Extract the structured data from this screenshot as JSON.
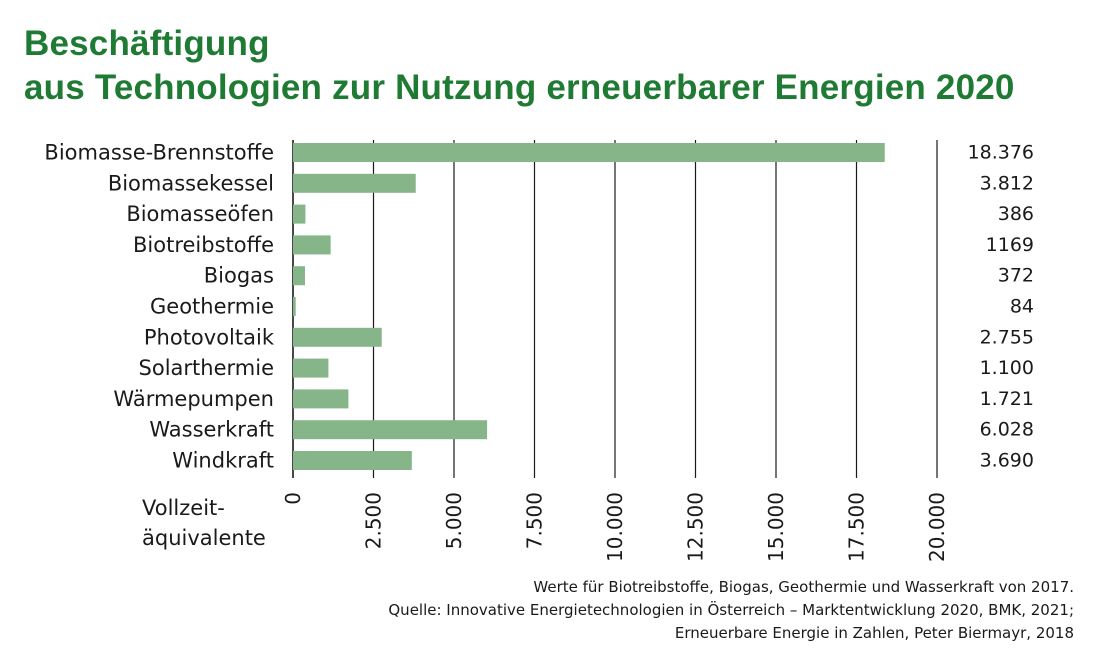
{
  "title_lines": [
    "Beschäftigung",
    "aus Technologien zur Nutzung erneuerbarer Energien 2020"
  ],
  "colors": {
    "title": "#1f7a33",
    "bar": "#86b58a",
    "axis": "#1a1a1a"
  },
  "chart_data": {
    "type": "bar",
    "orientation": "horizontal",
    "categories": [
      "Biomasse-Brennstoffe",
      "Biomassekessel",
      "Biomasseöfen",
      "Biotreibstoffe",
      "Biogas",
      "Geothermie",
      "Photovoltaik",
      "Solarthermie",
      "Wärmepumpen",
      "Wasserkraft",
      "Windkraft"
    ],
    "values": [
      18376,
      3812,
      386,
      1169,
      372,
      84,
      2755,
      1100,
      1721,
      6028,
      3690
    ],
    "value_labels": [
      "18.376",
      "3.812",
      "386",
      "1169",
      "372",
      "84",
      "2.755",
      "1.100",
      "1.721",
      "6.028",
      "3.690"
    ],
    "xlim": [
      0,
      20000
    ],
    "xticks": [
      0,
      2500,
      5000,
      7500,
      10000,
      12500,
      15000,
      17500,
      20000
    ],
    "xtick_labels": [
      "0",
      "2.500",
      "5.000",
      "7.500",
      "10.000",
      "12.500",
      "15.000",
      "17.500",
      "20.000"
    ],
    "xlabel_lines": [
      "Vollzeit-",
      "äquivalente"
    ],
    "grid": true,
    "legend": "none"
  },
  "footnotes": [
    "Werte für Biotreibstoffe, Biogas, Geothermie und Wasserkraft von 2017.",
    "Quelle: Innovative Energietechnologien in Österreich – Marktentwicklung 2020, BMK, 2021;",
    "Erneuerbare Energie in Zahlen, Peter Biermayr, 2018"
  ]
}
